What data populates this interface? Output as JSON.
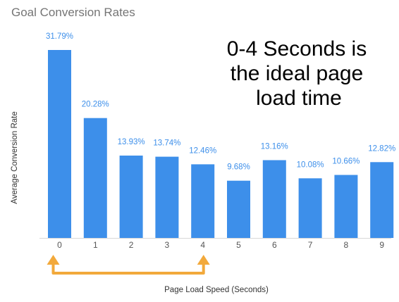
{
  "chart_data": {
    "type": "bar",
    "title": "Goal Conversion Rates",
    "annotation": [
      "0-4 Seconds is",
      "the ideal page",
      "load time"
    ],
    "xlabel": "Page Load Speed (Seconds)",
    "ylabel": "Average Conversion Rate",
    "categories": [
      "0",
      "1",
      "2",
      "3",
      "4",
      "5",
      "6",
      "7",
      "8",
      "9"
    ],
    "values": [
      31.79,
      20.28,
      13.93,
      13.74,
      12.46,
      9.68,
      13.16,
      10.08,
      10.66,
      12.82
    ],
    "labels": [
      "31.79%",
      "20.28%",
      "13.93%",
      "13.74%",
      "12.46%",
      "9.68%",
      "13.16%",
      "10.08%",
      "10.66%",
      "12.82%"
    ],
    "ylim": [
      0,
      31.79
    ],
    "highlight_range": [
      "0",
      "4"
    ],
    "grid": false,
    "colors": {
      "bar": "#3d8fea",
      "label": "#3d8fea",
      "arrow": "#f2a93b",
      "axis": "#d8d8d8"
    }
  }
}
